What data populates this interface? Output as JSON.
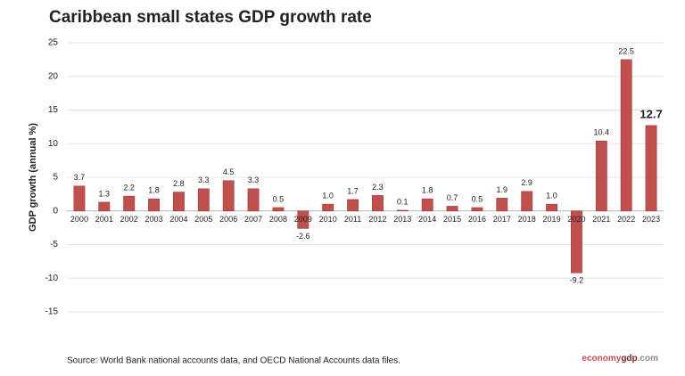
{
  "chart_data": {
    "type": "bar",
    "title": "Caribbean small states GDP growth rate",
    "y_label": "GDP growth (annual %)",
    "categories": [
      "2000",
      "2001",
      "2002",
      "2003",
      "2004",
      "2005",
      "2006",
      "2007",
      "2008",
      "2009",
      "2010",
      "2011",
      "2012",
      "2013",
      "2014",
      "2015",
      "2016",
      "2017",
      "2018",
      "2019",
      "2020",
      "2021",
      "2022",
      "2023"
    ],
    "values": [
      3.7,
      1.3,
      2.2,
      1.8,
      2.8,
      3.3,
      4.5,
      3.3,
      0.5,
      -2.6,
      1.0,
      1.7,
      2.3,
      0.1,
      1.8,
      0.7,
      0.5,
      1.9,
      2.9,
      1.0,
      -9.2,
      10.4,
      22.5,
      12.7
    ],
    "value_labels": [
      "3.7",
      "1.3",
      "2.2",
      "1.8",
      "2.8",
      "3.3",
      "4.5",
      "3.3",
      "0.5",
      "-2.6",
      "1.0",
      "1.7",
      "2.3",
      "0.1",
      "1.8",
      "0.7",
      "0.5",
      "1.9",
      "2.9",
      "1.0",
      "-9.2",
      "10.4",
      "22.5",
      "12.7"
    ],
    "color": "#c0504d",
    "emphasis_last": true,
    "ylim": [
      -15,
      25
    ],
    "yticks": [
      25,
      20,
      15,
      10,
      5,
      0,
      -5,
      -10,
      -15
    ],
    "grid": true,
    "source": "Source: World Bank national accounts data, and OECD National Accounts data files.",
    "logo": [
      "economy",
      "gdp",
      ".com"
    ]
  }
}
